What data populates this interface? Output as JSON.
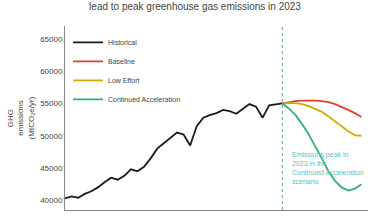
{
  "chart_data": {
    "type": "line",
    "title": "lead to peak greenhouse gas emissions in 2023",
    "y_label": "GHG\nemissions\n(MtCO₂e/yr)",
    "series": [
      {
        "name": "Historical",
        "color": "#1a1a1a",
        "x": [
          1990,
          1991,
          1992,
          1993,
          1994,
          1995,
          1996,
          1997,
          1998,
          1999,
          2000,
          2001,
          2002,
          2003,
          2004,
          2005,
          2006,
          2007,
          2008,
          2009,
          2010,
          2011,
          2012,
          2013,
          2014,
          2015,
          2016,
          2017,
          2018,
          2019,
          2020,
          2021,
          2022,
          2023
        ],
        "values": [
          40300,
          40600,
          40400,
          41000,
          41400,
          42000,
          42800,
          43500,
          43200,
          43800,
          44800,
          44500,
          45200,
          46500,
          48000,
          48800,
          49600,
          50500,
          50200,
          48500,
          51500,
          52800,
          53200,
          53500,
          54000,
          53800,
          53400,
          54200,
          54900,
          54500,
          52800,
          54700,
          54800,
          55000
        ]
      },
      {
        "name": "Baseline",
        "color": "#e04030",
        "x": [
          2023,
          2024,
          2025,
          2026,
          2027,
          2028,
          2029,
          2030,
          2031,
          2032,
          2033,
          2034,
          2035
        ],
        "values": [
          55000,
          55200,
          55350,
          55450,
          55480,
          55450,
          55380,
          55200,
          54900,
          54500,
          54000,
          53500,
          52900
        ]
      },
      {
        "name": "Low Effort",
        "color": "#d4a800",
        "x": [
          2023,
          2024,
          2025,
          2026,
          2027,
          2028,
          2029,
          2030,
          2031,
          2032,
          2033,
          2034,
          2035
        ],
        "values": [
          55000,
          55100,
          55050,
          54900,
          54600,
          54200,
          53700,
          53000,
          52200,
          51400,
          50700,
          50100,
          50000
        ]
      },
      {
        "name": "Continued Acceleration",
        "color": "#2db37a",
        "x": [
          2023,
          2024,
          2025,
          2026,
          2027,
          2028,
          2029,
          2030,
          2031,
          2032,
          2033,
          2034,
          2035
        ],
        "values": [
          55000,
          54200,
          53200,
          51800,
          50200,
          48400,
          46500,
          44500,
          43000,
          42000,
          41500,
          41800,
          42500
        ]
      }
    ],
    "vlines": [
      {
        "x": 2023,
        "color": "#5bbfbf",
        "line_style": "dotted"
      }
    ],
    "annotations": [
      {
        "text": "Emissions peak in\n2023 in the\nContinued Acceleration\nscenario",
        "x": 2024.2,
        "y": 48000,
        "color": "#5bbfbf"
      }
    ],
    "xlim": [
      1990,
      2036
    ],
    "ylim": [
      38500,
      67000
    ],
    "yticks": [
      40000,
      45000,
      50000,
      55000,
      60000,
      65000
    ],
    "tick_labels": "y",
    "grid": false,
    "legend": "upper left"
  }
}
